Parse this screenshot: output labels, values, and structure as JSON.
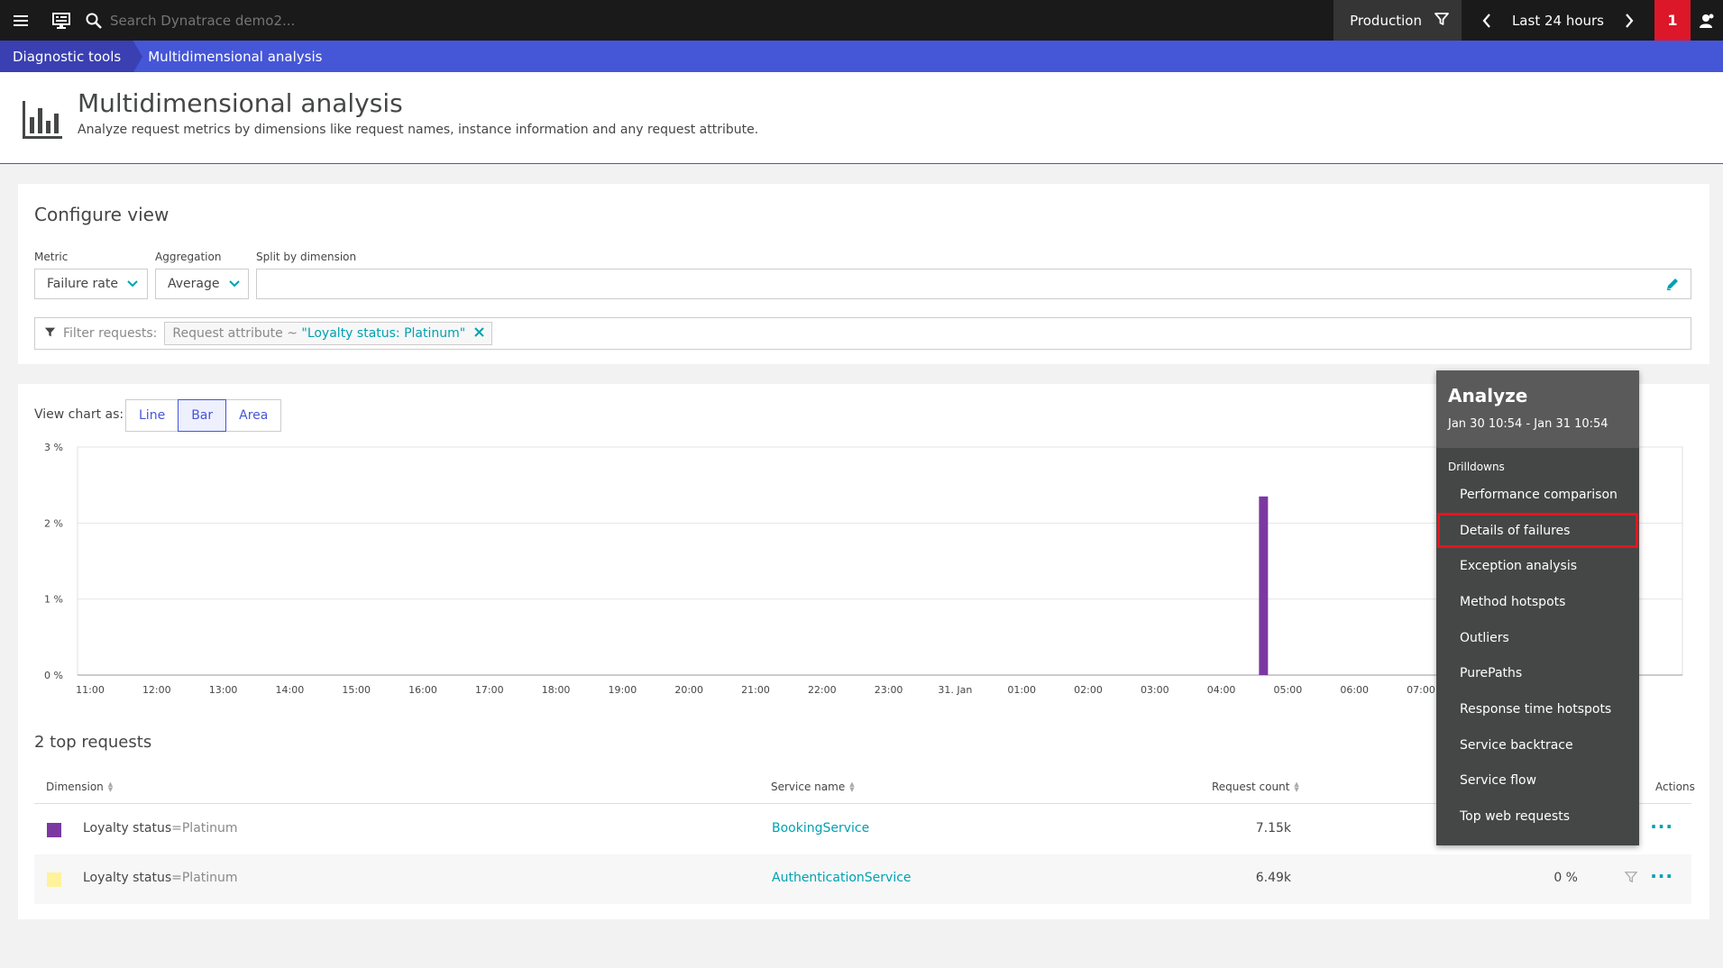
{
  "topbar": {
    "search_placeholder": "Search Dynatrace demo2...",
    "management_zone": "Production",
    "timeframe": "Last 24 hours",
    "problems_count": "1"
  },
  "breadcrumb": {
    "items": [
      "Diagnostic tools",
      "Multidimensional analysis"
    ]
  },
  "header": {
    "title": "Multidimensional analysis",
    "subtitle": "Analyze request metrics by dimensions like request names, instance information and any request attribute."
  },
  "config": {
    "title": "Configure view",
    "metric_label": "Metric",
    "metric_value": "Failure rate",
    "aggregation_label": "Aggregation",
    "aggregation_value": "Average",
    "split_label": "Split by dimension",
    "split_value": "",
    "filter_label": "Filter requests:",
    "filter_chip_key": "Request attribute ~ ",
    "filter_chip_value": "\"Loyalty status: Platinum\""
  },
  "chart_view": {
    "label": "View chart as:",
    "options": [
      "Line",
      "Bar",
      "Area"
    ],
    "selected": "Bar"
  },
  "chart_data": {
    "type": "bar",
    "y_ticks": [
      "3 %",
      "2 %",
      "1 %",
      "0 %"
    ],
    "ylim": [
      0,
      3
    ],
    "x_ticks": [
      "11:00",
      "12:00",
      "13:00",
      "14:00",
      "15:00",
      "16:00",
      "17:00",
      "18:00",
      "19:00",
      "20:00",
      "21:00",
      "22:00",
      "23:00",
      "31. Jan",
      "01:00",
      "02:00",
      "03:00",
      "04:00",
      "05:00",
      "06:00",
      "07:00"
    ],
    "series": [
      {
        "name": "Loyalty status=Platinum",
        "color": "#7c38a1",
        "points": [
          {
            "x": "04:38",
            "y": 2.35
          }
        ]
      }
    ],
    "grid": true
  },
  "top_requests": {
    "title": "2 top requests",
    "columns": [
      "Dimension",
      "Service name",
      "Request count",
      "Actions"
    ],
    "rows": [
      {
        "color": "#7c38a1",
        "dim_key": "Loyalty status",
        "dim_eq": "=",
        "dim_val": "Platinum",
        "service": "BookingService",
        "count": "7.15k",
        "rate": ""
      },
      {
        "color": "#fff29a",
        "dim_key": "Loyalty status",
        "dim_eq": "=",
        "dim_val": "Platinum",
        "service": "AuthenticationService",
        "count": "6.49k",
        "rate": "0 %"
      }
    ]
  },
  "analyze_menu": {
    "title": "Analyze",
    "range": "Jan 30 10:54 - Jan 31 10:54",
    "section": "Drilldowns",
    "items": [
      "Performance comparison",
      "Details of failures",
      "Exception analysis",
      "Method hotspots",
      "Outliers",
      "PurePaths",
      "Response time hotspots",
      "Service backtrace",
      "Service flow",
      "Top web requests"
    ],
    "highlighted": "Details of failures"
  },
  "colors": {
    "accent": "#4556d7",
    "link": "#00a1b2",
    "problem": "#dc172a",
    "highlight": "#e5151e"
  }
}
